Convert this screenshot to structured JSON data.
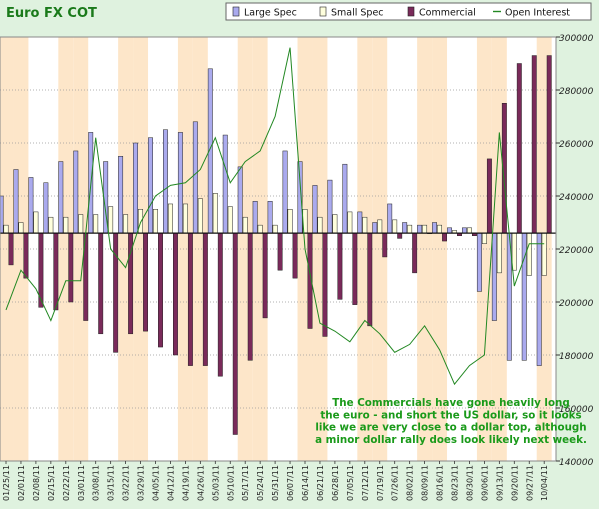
{
  "chart_data": {
    "type": "bar",
    "title": "Euro FX COT",
    "categories": [
      "01/25/11",
      "02/01/11",
      "02/08/11",
      "02/15/11",
      "02/22/11",
      "03/01/11",
      "03/08/11",
      "03/15/11",
      "03/22/11",
      "03/29/11",
      "04/05/11",
      "04/12/11",
      "04/19/11",
      "04/26/11",
      "05/03/11",
      "05/10/11",
      "05/17/11",
      "05/24/11",
      "05/31/11",
      "06/07/11",
      "06/14/11",
      "06/21/11",
      "06/28/11",
      "07/05/11",
      "07/12/11",
      "07/19/11",
      "07/26/11",
      "08/02/11",
      "08/09/11",
      "08/16/11",
      "08/23/11",
      "08/30/11",
      "09/06/11",
      "09/13/11",
      "09/20/11",
      "09/27/11",
      "10/04/11"
    ],
    "yaxis_right": {
      "min": 140000,
      "max": 300000,
      "ticks": [
        140000,
        160000,
        180000,
        200000,
        220000,
        240000,
        260000,
        280000,
        300000
      ],
      "tick_labels": [
        "140000",
        "160000",
        "180000",
        "200000",
        "220000",
        "240000",
        "260000",
        "280000",
        "300000"
      ]
    },
    "bar_baseline": 226000,
    "series": [
      {
        "name": "Large Spec",
        "kind": "bar",
        "color": "#aaaaee",
        "values": [
          240000,
          250000,
          247000,
          245000,
          253000,
          257000,
          264000,
          253000,
          255000,
          260000,
          262000,
          265000,
          264000,
          268000,
          288000,
          263000,
          251000,
          238000,
          238000,
          257000,
          253000,
          244000,
          246000,
          252000,
          234000,
          230000,
          237000,
          230000,
          229000,
          230000,
          228000,
          228000,
          204000,
          193000,
          178000,
          178000,
          176000
        ]
      },
      {
        "name": "Small Spec",
        "kind": "bar",
        "color": "#ffffdd",
        "values": [
          229000,
          230000,
          234000,
          232000,
          232000,
          233000,
          233000,
          236000,
          233000,
          235000,
          235000,
          237000,
          237000,
          239000,
          241000,
          236000,
          232000,
          229000,
          229000,
          235000,
          235000,
          232000,
          233000,
          234000,
          232000,
          231000,
          231000,
          229000,
          229000,
          229000,
          227000,
          228000,
          222000,
          211000,
          212000,
          210000,
          210000
        ]
      },
      {
        "name": "Commercial",
        "kind": "bar",
        "color": "#7a2a5a",
        "values": [
          214000,
          209000,
          198000,
          197000,
          200000,
          193000,
          188000,
          181000,
          188000,
          189000,
          183000,
          180000,
          176000,
          176000,
          172000,
          150000,
          178000,
          194000,
          212000,
          209000,
          190000,
          187000,
          201000,
          199000,
          191000,
          217000,
          224000,
          211000,
          226000,
          223000,
          225000,
          225000,
          254000,
          275000,
          290000,
          293000,
          293000
        ]
      },
      {
        "name": "Open Interest",
        "kind": "line",
        "color": "#228822",
        "values": [
          197000,
          212000,
          205000,
          193000,
          208000,
          208000,
          262000,
          220000,
          213000,
          230000,
          240000,
          244000,
          245000,
          250000,
          262000,
          245000,
          253000,
          257000,
          270000,
          296000,
          220000,
          192000,
          189000,
          185000,
          193000,
          188000,
          181000,
          184000,
          191000,
          182000,
          169000,
          176000,
          180000,
          264000,
          206000,
          222000,
          222000
        ]
      }
    ],
    "legend_position": "top-right",
    "grid": true,
    "annotation": [
      "The Commercials have gone heavily long",
      "the euro - and short the US dollar, so it looks",
      "like we are very close to a dollar top, although",
      "a minor dollar rally does look likely next week."
    ]
  }
}
